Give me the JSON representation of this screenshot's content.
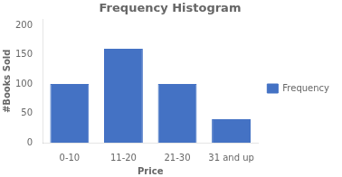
{
  "chart_data": {
    "type": "bar",
    "title": "Frequency Histogram",
    "categories": [
      "0-10",
      "11-20",
      "21-30",
      "31 and up"
    ],
    "series": [
      {
        "name": "Frequency",
        "color": "#4472C4",
        "values": [
          100,
          160,
          100,
          40
        ]
      }
    ],
    "xlabel": "Price",
    "ylabel": "#Books Sold",
    "ylim": [
      0,
      210
    ],
    "yticks": [
      0,
      50,
      100,
      150,
      200
    ],
    "grid": false,
    "legend": "right"
  }
}
